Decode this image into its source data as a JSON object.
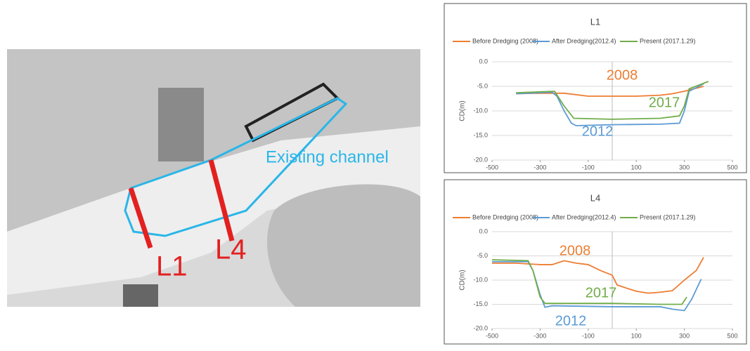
{
  "map": {
    "channel_label": "Existing channel",
    "section_1": "L1",
    "section_2": "L4"
  },
  "chart_data": [
    {
      "type": "line",
      "title": "L1",
      "y_label": "CD(m)",
      "xlim": [
        -500,
        500
      ],
      "xticks": [
        -500,
        -300,
        -100,
        100,
        300,
        500
      ],
      "ylim": [
        -20,
        0
      ],
      "yticks": [
        {
          "value": 0,
          "label": "0.0"
        },
        {
          "value": -5,
          "label": "-5.0"
        },
        {
          "value": -10,
          "label": "-10.0"
        },
        {
          "value": -15,
          "label": "-15.0"
        },
        {
          "value": -20,
          "label": "-20.0"
        }
      ],
      "grid": true,
      "series": [
        {
          "name": "Before Dredging (2008)",
          "color": "#ed7d31",
          "x": [
            -400,
            -300,
            -200,
            -100,
            0,
            100,
            200,
            250,
            300,
            380
          ],
          "values": [
            -6.5,
            -6.4,
            -6.4,
            -7.0,
            -7.0,
            -7.0,
            -6.8,
            -6.5,
            -6.0,
            -5.0
          ]
        },
        {
          "name": "After Dredging(2012.4)",
          "color": "#5b9bd5",
          "x": [
            -400,
            -250,
            -230,
            -200,
            -170,
            -150,
            0,
            200,
            280,
            300,
            320,
            380
          ],
          "values": [
            -6.5,
            -6.2,
            -7.0,
            -10.0,
            -12.5,
            -13.0,
            -12.8,
            -12.7,
            -12.5,
            -10.0,
            -6.0,
            -4.5
          ]
        },
        {
          "name": "Present (2017.1.29)",
          "color": "#70ad47",
          "x": [
            -400,
            -240,
            -200,
            -160,
            0,
            200,
            280,
            300,
            320,
            400
          ],
          "values": [
            -6.3,
            -6.0,
            -9.0,
            -11.5,
            -11.7,
            -11.5,
            -11.0,
            -9.0,
            -5.5,
            -4.0
          ]
        }
      ],
      "annotations": [
        {
          "text": "2008",
          "color": "#ed7d31"
        },
        {
          "text": "2017",
          "color": "#70ad47"
        },
        {
          "text": "2012",
          "color": "#5b9bd5"
        }
      ]
    },
    {
      "type": "line",
      "title": "L4",
      "y_label": "CD(m)",
      "xlim": [
        -500,
        500
      ],
      "xticks": [
        -500,
        -300,
        -100,
        100,
        300,
        500
      ],
      "ylim": [
        -20,
        0
      ],
      "yticks": [
        {
          "value": 0,
          "label": "0.0"
        },
        {
          "value": -5,
          "label": "-5.0"
        },
        {
          "value": -10,
          "label": "-10.0"
        },
        {
          "value": -15,
          "label": "-15.0"
        },
        {
          "value": -20,
          "label": "-20.0"
        }
      ],
      "grid": true,
      "series": [
        {
          "name": "Before Dredging (2008)",
          "color": "#ed7d31",
          "x": [
            -500,
            -400,
            -300,
            -250,
            -200,
            -150,
            -100,
            -50,
            0,
            20,
            50,
            100,
            150,
            200,
            250,
            300,
            350,
            380
          ],
          "values": [
            -6.5,
            -6.5,
            -6.8,
            -6.8,
            -6.0,
            -6.5,
            -6.8,
            -8.0,
            -9.0,
            -11.0,
            -11.5,
            -12.3,
            -12.7,
            -12.5,
            -12.2,
            -10.0,
            -8.0,
            -5.3
          ]
        },
        {
          "name": "After Dredging(2012.4)",
          "color": "#5b9bd5",
          "x": [
            -500,
            -350,
            -330,
            -300,
            -280,
            -250,
            0,
            200,
            250,
            300,
            330,
            370
          ],
          "values": [
            -6.2,
            -6.2,
            -8.0,
            -13.0,
            -15.6,
            -15.3,
            -15.5,
            -15.5,
            -16.0,
            -16.3,
            -14.0,
            -9.8
          ]
        },
        {
          "name": "Present (2017.1.29)",
          "color": "#70ad47",
          "x": [
            -500,
            -350,
            -330,
            -300,
            -280,
            0,
            200,
            290,
            310
          ],
          "values": [
            -5.8,
            -6.0,
            -8.0,
            -13.5,
            -14.8,
            -14.8,
            -15.0,
            -15.0,
            -13.5
          ]
        }
      ],
      "annotations": [
        {
          "text": "2008",
          "color": "#ed7d31"
        },
        {
          "text": "2017",
          "color": "#70ad47"
        },
        {
          "text": "2012",
          "color": "#5b9bd5"
        }
      ]
    }
  ]
}
